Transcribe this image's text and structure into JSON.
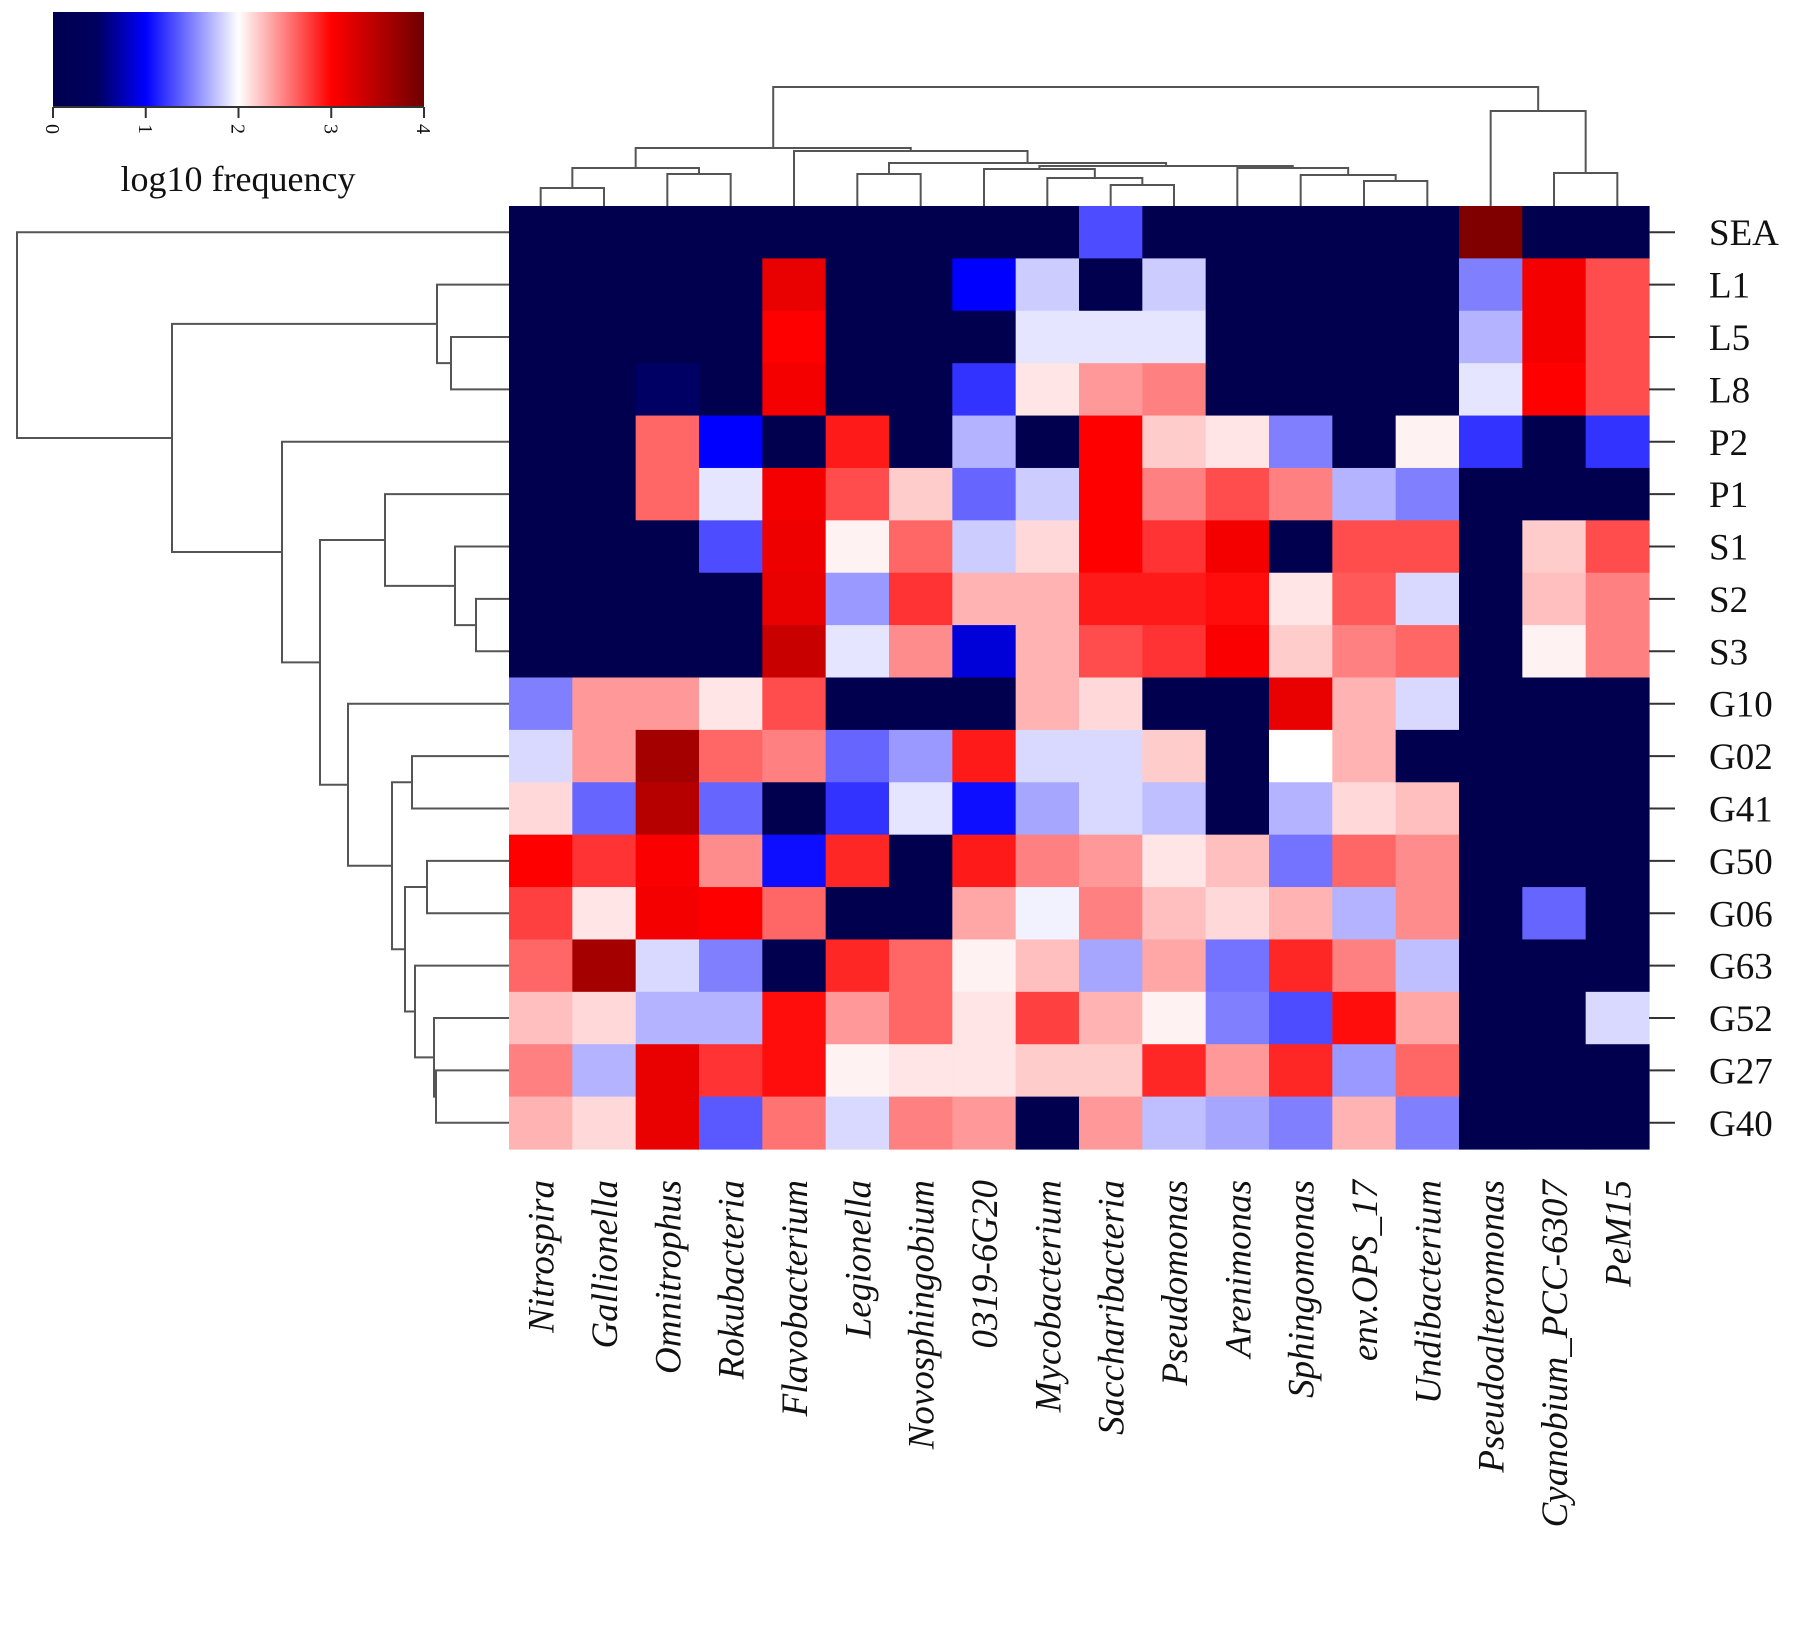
{
  "chart_data": {
    "type": "heatmap",
    "title": "",
    "legend": {
      "title": "log10 frequency",
      "ticks": [
        "0",
        "1",
        "2",
        "3",
        "4"
      ],
      "range": [
        0,
        4
      ],
      "colors": {
        "0": "#00004f",
        "1": "#0000ff",
        "2": "#ffffff",
        "3": "#ff0000",
        "4": "#6e0000"
      },
      "placement": "top-left"
    },
    "columns": [
      "Nitrospira",
      "Gallionella",
      "Omnitrophus",
      "Rokubacteria",
      "Flavobacterium",
      "Legionella",
      "Novosphingobium",
      "0319-6G20",
      "Mycobacterium",
      "Saccharibacteria",
      "Pseudomonas",
      "Arenimonas",
      "Sphingomonas",
      "env.OPS_17",
      "Undibacterium",
      "Pseudoalteromonas",
      "Cyanobium_PCC-6307",
      "PeM15"
    ],
    "rows": [
      "SEA",
      "L1",
      "L5",
      "L8",
      "P2",
      "P1",
      "S1",
      "S2",
      "S3",
      "G10",
      "G02",
      "G41",
      "G50",
      "G06",
      "G63",
      "G52",
      "G27",
      "G40"
    ],
    "values": [
      [
        0,
        0,
        0,
        0,
        0,
        0,
        0,
        0,
        0,
        1.3,
        0,
        0,
        0,
        0,
        0,
        3.9,
        0,
        0
      ],
      [
        0,
        0,
        0,
        0,
        3.2,
        0,
        0,
        1.0,
        1.8,
        0,
        1.8,
        0,
        0,
        0,
        0,
        1.5,
        3.1,
        2.7
      ],
      [
        0,
        0,
        0,
        0,
        3.0,
        0,
        0,
        0,
        1.9,
        1.9,
        1.9,
        0,
        0,
        0,
        0,
        1.7,
        3.1,
        2.7
      ],
      [
        0,
        0,
        0.6,
        0,
        3.1,
        0,
        0,
        1.2,
        2.1,
        2.4,
        2.5,
        0,
        0,
        0,
        0,
        1.9,
        3.0,
        2.7
      ],
      [
        0,
        0,
        2.6,
        1.0,
        0,
        2.9,
        0,
        1.7,
        0,
        3.0,
        2.2,
        2.1,
        1.5,
        0,
        2.05,
        1.2,
        0,
        1.2
      ],
      [
        0,
        0,
        2.6,
        1.9,
        3.1,
        2.7,
        2.2,
        1.4,
        1.8,
        3.0,
        2.5,
        2.7,
        2.5,
        1.7,
        1.5,
        0,
        0,
        0
      ],
      [
        0,
        0,
        0,
        1.3,
        3.15,
        2.05,
        2.6,
        1.8,
        2.15,
        3.0,
        2.8,
        3.1,
        0,
        2.7,
        2.7,
        0,
        2.2,
        2.7
      ],
      [
        0,
        0,
        0,
        0,
        3.2,
        1.6,
        2.8,
        2.3,
        2.3,
        2.9,
        2.9,
        2.95,
        2.1,
        2.65,
        1.85,
        0,
        2.25,
        2.5
      ],
      [
        0,
        0,
        0,
        0,
        3.5,
        1.9,
        2.45,
        0.9,
        2.3,
        2.7,
        2.8,
        3.05,
        2.2,
        2.5,
        2.6,
        0,
        2.05,
        2.5
      ],
      [
        1.5,
        2.4,
        2.4,
        2.1,
        2.7,
        0,
        0,
        0,
        2.3,
        2.15,
        0,
        0,
        3.2,
        2.3,
        1.85,
        0,
        0,
        0
      ],
      [
        1.85,
        2.4,
        3.7,
        2.6,
        2.5,
        1.4,
        1.6,
        2.9,
        1.85,
        1.85,
        2.2,
        0,
        2.0,
        2.3,
        0,
        0,
        0,
        0
      ],
      [
        2.15,
        1.4,
        3.6,
        1.4,
        0,
        1.2,
        1.9,
        1.05,
        1.65,
        1.85,
        1.75,
        0,
        1.7,
        2.15,
        2.25,
        0,
        0,
        0
      ],
      [
        3.0,
        2.8,
        3.05,
        2.45,
        1.05,
        2.85,
        0,
        2.9,
        2.5,
        2.4,
        2.1,
        2.25,
        1.45,
        2.6,
        2.45,
        0,
        0,
        0
      ],
      [
        2.75,
        2.1,
        3.1,
        3.0,
        2.6,
        0,
        0,
        2.35,
        1.95,
        2.5,
        2.25,
        2.15,
        2.3,
        1.7,
        2.45,
        0,
        1.4,
        0
      ],
      [
        2.6,
        3.7,
        1.85,
        1.5,
        0,
        2.85,
        2.6,
        2.05,
        2.25,
        1.65,
        2.35,
        1.45,
        2.85,
        2.5,
        1.75,
        0,
        0,
        0
      ],
      [
        2.25,
        2.15,
        1.7,
        1.7,
        2.95,
        2.4,
        2.6,
        2.1,
        2.75,
        2.3,
        2.05,
        1.5,
        1.3,
        2.95,
        2.35,
        0,
        0,
        1.85
      ],
      [
        2.5,
        1.7,
        3.2,
        2.8,
        2.95,
        2.05,
        2.1,
        2.1,
        2.2,
        2.2,
        2.85,
        2.4,
        2.85,
        1.6,
        2.6,
        0,
        0,
        0
      ],
      [
        2.3,
        2.15,
        3.2,
        1.35,
        2.55,
        1.85,
        2.5,
        2.4,
        0,
        2.4,
        1.75,
        1.65,
        1.5,
        2.3,
        1.5,
        0,
        0,
        0
      ]
    ],
    "row_dendrogram": true,
    "column_dendrogram": true
  }
}
